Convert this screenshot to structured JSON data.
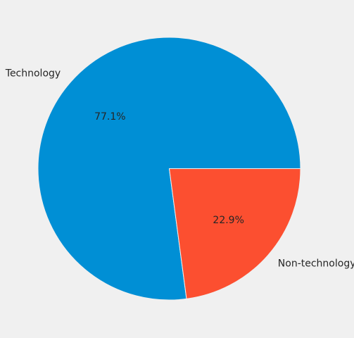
{
  "chart_data": {
    "type": "pie",
    "title": "",
    "labels": [
      "Technology",
      "Non-technology"
    ],
    "values": [
      77.1,
      22.9
    ],
    "percent_labels": [
      "77.1%",
      "22.9%"
    ],
    "colors": [
      "#008fd5",
      "#fc4f30"
    ],
    "start_angle_deg": 0,
    "direction": "counterclockwise",
    "legend": "none"
  }
}
